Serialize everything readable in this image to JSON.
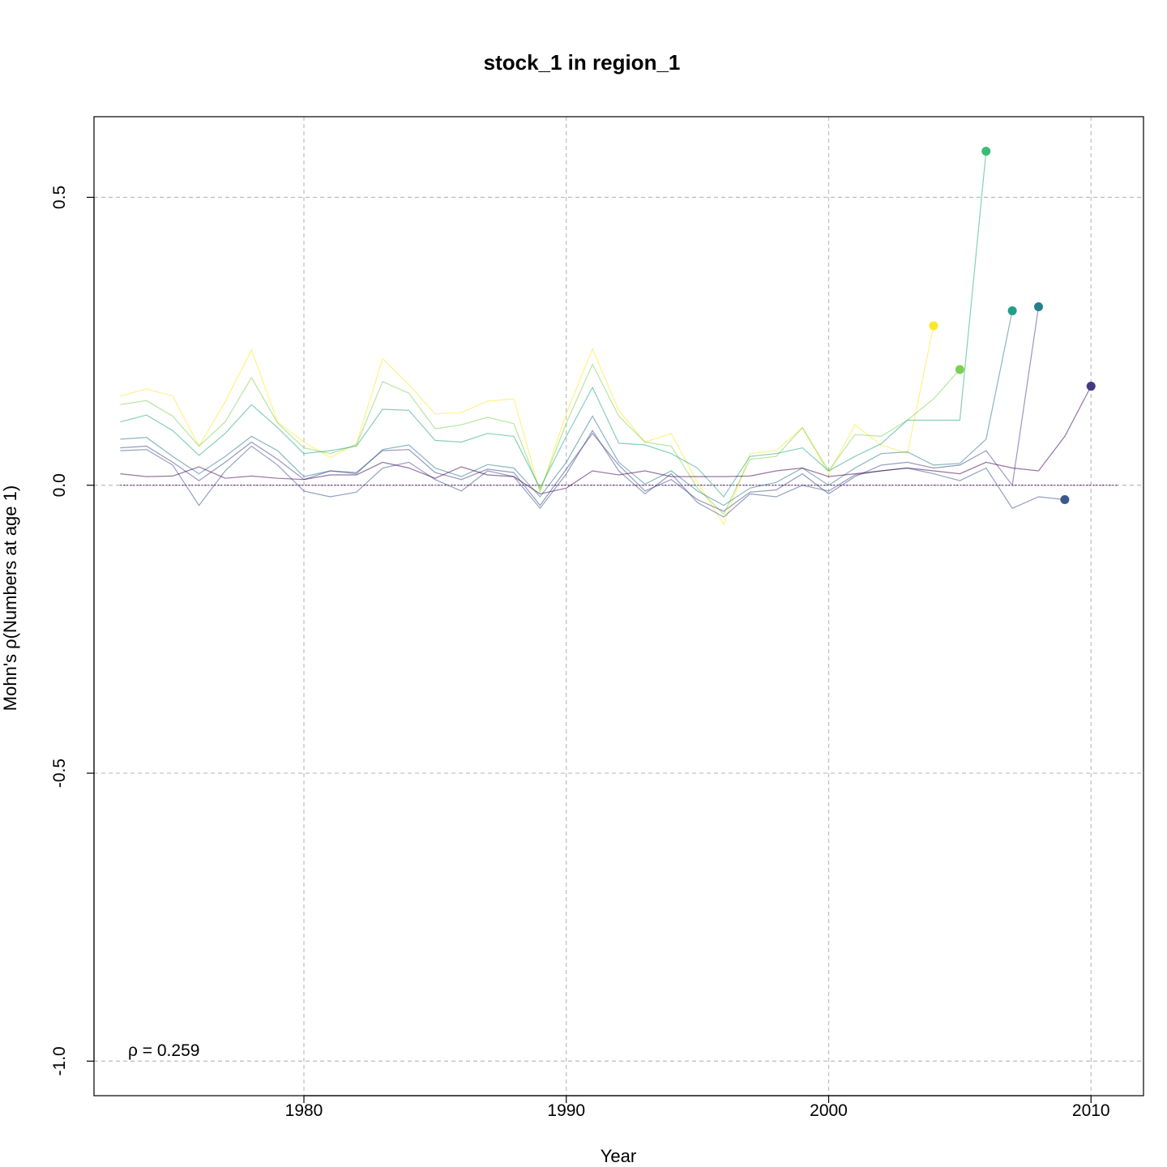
{
  "chart_data": {
    "type": "line",
    "title": "stock_1 in region_1",
    "xlabel": "Year",
    "ylabel": "Mohn's ρ(Numbers at age 1)",
    "xlim": [
      1972,
      2012
    ],
    "ylim": [
      -1.06,
      0.64
    ],
    "x_ticks": [
      1980,
      1990,
      2000,
      2010
    ],
    "x_tick_labels": [
      "1980",
      "1990",
      "2000",
      "2010"
    ],
    "y_ticks": [
      0.5,
      0.0,
      -0.5,
      -1.0
    ],
    "y_tick_labels": [
      "0.5",
      "0.0",
      "-0.5",
      "-1.0"
    ],
    "grid": true,
    "reference_line": 0,
    "annotation": "ρ = 0.259",
    "series": [
      {
        "color": "#FDE725",
        "x": [
          1973,
          1974,
          1975,
          1976,
          1977,
          1978,
          1979,
          1980,
          1981,
          1982,
          1983,
          1984,
          1985,
          1986,
          1987,
          1988,
          1989,
          1990,
          1991,
          1992,
          1993,
          1994,
          1995,
          1996,
          1997,
          1998,
          1999,
          2000,
          2001,
          2002,
          2003,
          2004
        ],
        "values": [
          0.155,
          0.167,
          0.155,
          0.068,
          0.145,
          0.235,
          0.11,
          0.075,
          0.048,
          0.072,
          0.22,
          0.175,
          0.124,
          0.126,
          0.146,
          0.15,
          -0.012,
          0.125,
          0.237,
          0.13,
          0.075,
          0.09,
          0.005,
          -0.068,
          0.055,
          0.06,
          0.1,
          0.02,
          0.105,
          0.07,
          0.055,
          0.277
        ]
      },
      {
        "color": "#7AD151",
        "x": [
          1973,
          1974,
          1975,
          1976,
          1977,
          1978,
          1979,
          1980,
          1981,
          1982,
          1983,
          1984,
          1985,
          1986,
          1987,
          1988,
          1989,
          1990,
          1991,
          1992,
          1993,
          1994,
          1995,
          1996,
          1997,
          1998,
          1999,
          2000,
          2001,
          2002,
          2003,
          2004,
          2005
        ],
        "values": [
          0.14,
          0.147,
          0.12,
          0.068,
          0.11,
          0.187,
          0.108,
          0.065,
          0.055,
          0.07,
          0.18,
          0.16,
          0.098,
          0.105,
          0.118,
          0.107,
          -0.01,
          0.108,
          0.21,
          0.12,
          0.075,
          0.068,
          -0.005,
          -0.05,
          0.045,
          0.05,
          0.1,
          0.025,
          0.088,
          0.085,
          0.113,
          0.15,
          0.201
        ]
      },
      {
        "color": "#22A884",
        "x": [
          1973,
          1974,
          1975,
          1976,
          1977,
          1978,
          1979,
          1980,
          1981,
          1982,
          1983,
          1984,
          1985,
          1986,
          1987,
          1988,
          1989,
          1990,
          1991,
          1992,
          1993,
          1994,
          1995,
          1996,
          1997,
          1998,
          1999,
          2000,
          2001,
          2002,
          2003,
          2004,
          2005,
          2006
        ],
        "values": [
          0.11,
          0.122,
          0.095,
          0.052,
          0.09,
          0.14,
          0.1,
          0.055,
          0.06,
          0.068,
          0.132,
          0.13,
          0.078,
          0.075,
          0.09,
          0.085,
          -0.005,
          0.085,
          0.17,
          0.073,
          0.07,
          0.055,
          0.03,
          -0.02,
          0.05,
          0.055,
          0.065,
          0.025,
          0.05,
          0.072,
          0.113,
          0.113,
          0.113,
          0.58
        ]
      },
      {
        "color": "#2A788E",
        "x": [
          1973,
          1974,
          1975,
          1976,
          1977,
          1978,
          1979,
          1980,
          1981,
          1982,
          1983,
          1984,
          1985,
          1986,
          1987,
          1988,
          1989,
          1990,
          1991,
          1992,
          1993,
          1994,
          1995,
          1996,
          1997,
          1998,
          1999,
          2000,
          2001,
          2002,
          2003,
          2004,
          2005,
          2006,
          2007
        ],
        "values": [
          0.08,
          0.083,
          0.05,
          0.02,
          0.05,
          0.085,
          0.06,
          0.015,
          0.025,
          0.02,
          0.062,
          0.07,
          0.03,
          0.015,
          0.036,
          0.03,
          -0.02,
          0.04,
          0.12,
          0.04,
          0.002,
          0.025,
          -0.01,
          -0.035,
          -0.005,
          0.005,
          0.03,
          0.0,
          0.03,
          0.055,
          0.058,
          0.035,
          0.038,
          0.08,
          0.303
        ]
      },
      {
        "color": "#414487",
        "x": [
          1973,
          1974,
          1975,
          1976,
          1977,
          1978,
          1979,
          1980,
          1981,
          1982,
          1983,
          1984,
          1985,
          1986,
          1987,
          1988,
          1989,
          1990,
          1991,
          1992,
          1993,
          1994,
          1995,
          1996,
          1997,
          1998,
          1999,
          2000,
          2001,
          2002,
          2003,
          2004,
          2005,
          2006,
          2007,
          2008
        ],
        "values": [
          0.065,
          0.068,
          0.04,
          0.008,
          0.04,
          0.075,
          0.045,
          0.01,
          0.025,
          0.022,
          0.06,
          0.062,
          0.022,
          0.01,
          0.028,
          0.022,
          -0.035,
          0.028,
          0.09,
          0.035,
          -0.01,
          0.01,
          -0.025,
          -0.045,
          -0.012,
          -0.008,
          0.02,
          -0.015,
          0.015,
          0.035,
          0.04,
          0.03,
          0.035,
          0.06,
          0.0,
          0.31
        ]
      },
      {
        "color": "#3B528B",
        "x": [
          1973,
          1974,
          1975,
          1976,
          1977,
          1978,
          1979,
          1980,
          1981,
          1982,
          1983,
          1984,
          1985,
          1986,
          1987,
          1988,
          1989,
          1990,
          1991,
          1992,
          1993,
          1994,
          1995,
          1996,
          1997,
          1998,
          1999,
          2000,
          2001,
          2002,
          2003,
          2004,
          2005,
          2006,
          2007,
          2008,
          2009
        ],
        "values": [
          0.06,
          0.062,
          0.035,
          -0.035,
          0.025,
          0.068,
          0.035,
          -0.01,
          -0.02,
          -0.012,
          0.03,
          0.04,
          0.01,
          -0.01,
          0.025,
          0.015,
          -0.04,
          0.02,
          0.095,
          0.025,
          -0.015,
          0.02,
          -0.03,
          -0.055,
          -0.015,
          -0.02,
          0.0,
          -0.01,
          0.018,
          0.025,
          0.03,
          0.02,
          0.008,
          0.03,
          -0.04,
          -0.02,
          -0.025
        ]
      },
      {
        "color": "#440154",
        "x": [
          1973,
          1974,
          1975,
          1976,
          1977,
          1978,
          1979,
          1980,
          1981,
          1982,
          1983,
          1984,
          1985,
          1986,
          1987,
          1988,
          1989,
          1990,
          1991,
          1992,
          1993,
          1994,
          1995,
          1996,
          1997,
          1998,
          1999,
          2000,
          2001,
          2002,
          2003,
          2004,
          2005,
          2006,
          2007,
          2008,
          2009,
          2010
        ],
        "values": [
          0.02,
          0.015,
          0.016,
          0.032,
          0.012,
          0.016,
          0.012,
          0.01,
          0.018,
          0.018,
          0.04,
          0.03,
          0.012,
          0.032,
          0.018,
          0.015,
          -0.015,
          -0.005,
          0.025,
          0.018,
          0.025,
          0.015,
          0.015,
          0.015,
          0.016,
          0.025,
          0.03,
          0.015,
          0.02,
          0.025,
          0.03,
          0.025,
          0.02,
          0.04,
          0.03,
          0.025,
          0.085,
          0.172
        ]
      }
    ],
    "endpoints": [
      {
        "x": 2004,
        "y": 0.277,
        "color": "#FDE725"
      },
      {
        "x": 2005,
        "y": 0.201,
        "color": "#7AD151"
      },
      {
        "x": 2006,
        "y": 0.58,
        "color": "#3CBB75"
      },
      {
        "x": 2007,
        "y": 0.303,
        "color": "#1F9E89"
      },
      {
        "x": 2008,
        "y": 0.31,
        "color": "#277F8E"
      },
      {
        "x": 2009,
        "y": -0.025,
        "color": "#3B5A8C"
      },
      {
        "x": 2010,
        "y": 0.172,
        "color": "#443A83"
      }
    ]
  }
}
